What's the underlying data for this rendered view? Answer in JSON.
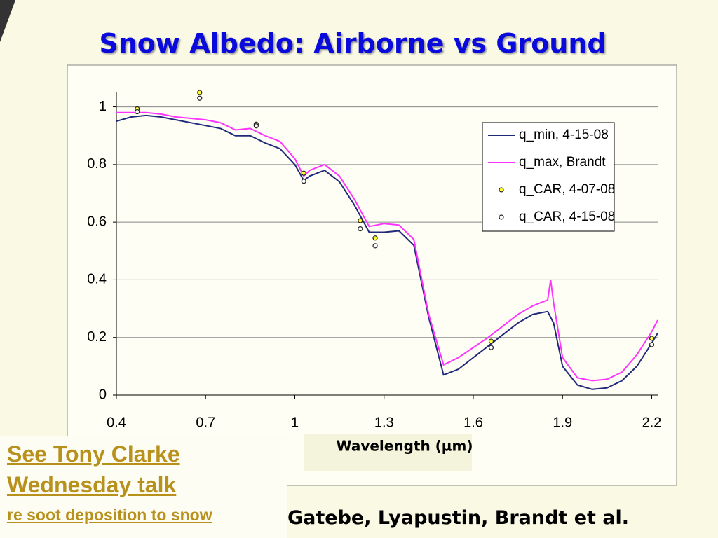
{
  "slide": {
    "title": "Snow Albedo: Airborne vs Ground",
    "note_lines": [
      "See Tony Clarke",
      "Wednesday talk"
    ],
    "note_sub": "re soot deposition to snow",
    "credit": "Gatebe, Lyapustin, Brandt et al."
  },
  "chart_data": {
    "type": "line",
    "x_label": "Wavelength (µm)",
    "xlim": [
      0.4,
      2.22
    ],
    "xticks": [
      0.4,
      0.7,
      1,
      1.3,
      1.6,
      1.9,
      2.2
    ],
    "ylim": [
      0,
      1.05
    ],
    "yticks": [
      0,
      0.2,
      0.4,
      0.6,
      0.8,
      1
    ],
    "grid": true,
    "legend": "top-right",
    "series": [
      {
        "name": "q_min, 4-15-08",
        "color": "#1f2a7a",
        "mode": "line",
        "x": [
          0.4,
          0.45,
          0.5,
          0.55,
          0.6,
          0.65,
          0.7,
          0.75,
          0.8,
          0.85,
          0.9,
          0.95,
          1.0,
          1.03,
          1.05,
          1.1,
          1.15,
          1.2,
          1.25,
          1.3,
          1.35,
          1.4,
          1.45,
          1.5,
          1.55,
          1.6,
          1.65,
          1.7,
          1.75,
          1.8,
          1.85,
          1.86,
          1.87,
          1.9,
          1.95,
          2.0,
          2.05,
          2.1,
          2.15,
          2.2,
          2.22
        ],
        "values": [
          0.95,
          0.965,
          0.97,
          0.965,
          0.955,
          0.945,
          0.935,
          0.925,
          0.9,
          0.9,
          0.875,
          0.855,
          0.8,
          0.745,
          0.76,
          0.78,
          0.74,
          0.66,
          0.565,
          0.565,
          0.57,
          0.52,
          0.27,
          0.07,
          0.09,
          0.13,
          0.17,
          0.21,
          0.25,
          0.28,
          0.29,
          0.27,
          0.25,
          0.1,
          0.035,
          0.02,
          0.025,
          0.05,
          0.1,
          0.18,
          0.215
        ]
      },
      {
        "name": "q_max, Brandt",
        "color": "#ff33ff",
        "mode": "line",
        "x": [
          0.4,
          0.45,
          0.5,
          0.55,
          0.6,
          0.65,
          0.7,
          0.75,
          0.8,
          0.85,
          0.9,
          0.95,
          1.0,
          1.03,
          1.05,
          1.1,
          1.15,
          1.2,
          1.25,
          1.3,
          1.35,
          1.4,
          1.45,
          1.5,
          1.55,
          1.6,
          1.65,
          1.7,
          1.75,
          1.8,
          1.85,
          1.86,
          1.87,
          1.9,
          1.95,
          2.0,
          2.05,
          2.1,
          2.15,
          2.2,
          2.22
        ],
        "values": [
          0.98,
          0.98,
          0.98,
          0.975,
          0.965,
          0.96,
          0.955,
          0.945,
          0.92,
          0.925,
          0.9,
          0.88,
          0.82,
          0.76,
          0.78,
          0.8,
          0.76,
          0.68,
          0.585,
          0.595,
          0.59,
          0.54,
          0.28,
          0.105,
          0.13,
          0.165,
          0.2,
          0.24,
          0.28,
          0.31,
          0.33,
          0.4,
          0.32,
          0.13,
          0.06,
          0.05,
          0.055,
          0.08,
          0.14,
          0.22,
          0.26
        ]
      },
      {
        "name": "q_CAR, 4-07-08",
        "color": "#ffff33",
        "mode": "markers",
        "x": [
          0.47,
          0.68,
          0.87,
          1.03,
          1.22,
          1.27,
          1.66,
          2.2
        ],
        "values": [
          0.993,
          1.05,
          0.94,
          0.77,
          0.605,
          0.545,
          0.187,
          0.197
        ]
      },
      {
        "name": "q_CAR, 4-15-08",
        "color": "#ffffff",
        "mode": "markers",
        "x": [
          0.47,
          0.68,
          0.87,
          1.03,
          1.22,
          1.27,
          1.66,
          2.2
        ],
        "values": [
          0.983,
          1.03,
          0.934,
          0.742,
          0.577,
          0.518,
          0.165,
          0.175
        ]
      }
    ]
  }
}
